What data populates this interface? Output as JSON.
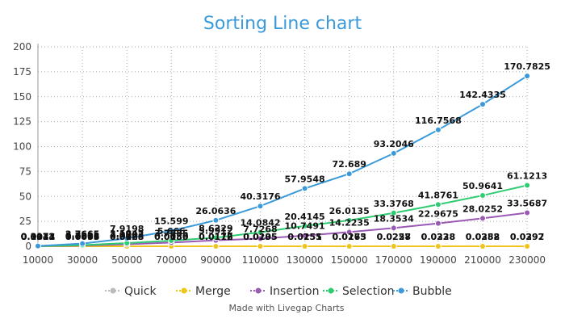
{
  "chart_data": {
    "type": "line",
    "title": "Sorting Line chart",
    "credit": "Made with Livegap Charts",
    "xlabel": "",
    "ylabel": "",
    "ylim": [
      0,
      200
    ],
    "yticks": [
      0,
      25,
      50,
      75,
      100,
      125,
      150,
      175,
      200
    ],
    "categories": [
      "10000",
      "30000",
      "50000",
      "70000",
      "90000",
      "110000",
      "130000",
      "150000",
      "170000",
      "190000",
      "210000",
      "230000"
    ],
    "grid": true,
    "legend_position": "bottom",
    "colors": {
      "title": "#3a9ad9",
      "axis": "#999999",
      "grid": "#aaaaaa"
    },
    "series": [
      {
        "name": "Quick",
        "color": "#bbbbbb",
        "values": [
          0.0034,
          0.0066,
          0.0068,
          0.0089,
          0.0112,
          0.0135,
          0.0155,
          0.0175,
          0.0228,
          0.0238,
          0.0282,
          0.0292
        ],
        "labels": [
          "0.0034",
          "0.0066",
          "0.0068",
          "0.0089",
          "0.0112",
          "0.0135",
          "0.0155",
          "0.0175",
          "0.0228",
          "0.0238",
          "0.0282",
          "0.0292"
        ]
      },
      {
        "name": "Merge",
        "color": "#f0c419",
        "values": [
          0.0047,
          0.0095,
          0.0125,
          0.015,
          0.0176,
          0.0205,
          0.0251,
          0.0263,
          0.0257,
          0.0328,
          0.0358,
          0.0397
        ],
        "labels": [
          "0.0047",
          "0.0095",
          "0.0125",
          "0.0150",
          "0.0176",
          "0.0205",
          "0.0251",
          "0.0263",
          "0.0257",
          "0.0328",
          "0.0358",
          "0.0397"
        ]
      },
      {
        "name": "Insertion",
        "color": "#9b59b6",
        "values": [
          0.0912,
          0.7566,
          2.0003,
          3.7555,
          5.9912,
          7.7268,
          10.7491,
          14.2235,
          18.3534,
          22.9675,
          28.0252,
          33.5687
        ],
        "labels": [
          "0.0912",
          "0.7566",
          "2.0003",
          "3.7555",
          "5.9912",
          "7.7268",
          "10.7491",
          "14.2235",
          "18.3534",
          "22.9675",
          "28.0252",
          "33.5687"
        ]
      },
      {
        "name": "Selection",
        "color": "#2ecc71",
        "values": [
          0.1331,
          1.2211,
          3.1942,
          5.666,
          8.6229,
          14.0842,
          20.4145,
          26.0135,
          33.3768,
          41.8761,
          50.9641,
          61.1213
        ],
        "labels": [
          "0.1331",
          "1.2211",
          "3.1942",
          "5.666",
          "8.6229",
          "14.0842",
          "20.4145",
          "26.0135",
          "33.3768",
          "41.8761",
          "50.9641",
          "61.1213"
        ]
      },
      {
        "name": "Bubble",
        "color": "#3a9ad9",
        "values": [
          0.3173,
          2.7665,
          7.9198,
          15.599,
          26.0636,
          40.3176,
          57.9548,
          72.689,
          93.2046,
          116.7568,
          142.4335,
          170.7825
        ],
        "labels": [
          "0.3173",
          "2.7665",
          "7.9198",
          "15.599",
          "26.0636",
          "40.3176",
          "57.9548",
          "72.689",
          "93.2046",
          "116.7568",
          "142.4335",
          "170.7825"
        ]
      }
    ]
  }
}
